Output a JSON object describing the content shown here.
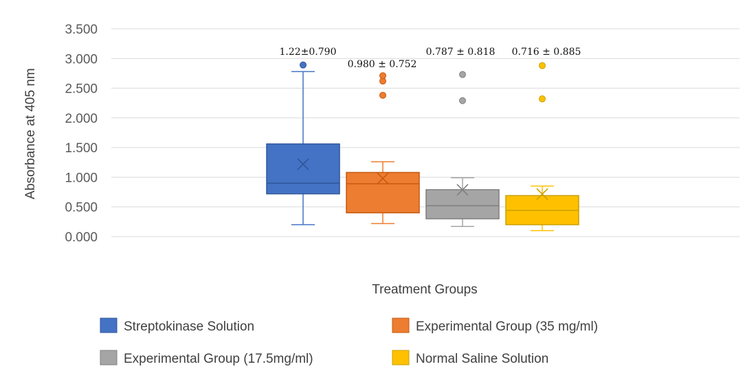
{
  "chart_data": {
    "type": "boxplot",
    "xlabel": "Treatment Groups",
    "ylabel": "Absorbance at 405 nm",
    "ylim": [
      0,
      3.5
    ],
    "yticks": [
      "0.000",
      "0.500",
      "1.000",
      "1.500",
      "2.000",
      "2.500",
      "3.000",
      "3.500"
    ],
    "grid": true,
    "legend_position": "bottom",
    "series": [
      {
        "name": "Streptokinase Solution",
        "color": "#4472C4",
        "edge": "#2F5597",
        "min": 0.2,
        "q1": 0.72,
        "median": 0.9,
        "q3": 1.56,
        "max": 2.78,
        "mean": 1.22,
        "outliers": [
          2.89
        ],
        "annotation": "1.22±0.790"
      },
      {
        "name": "Experimental Group (35 mg/ml)",
        "color": "#ED7D31",
        "edge": "#C55A11",
        "min": 0.22,
        "q1": 0.4,
        "median": 0.89,
        "q3": 1.08,
        "max": 1.26,
        "mean": 0.98,
        "outliers": [
          2.38,
          2.62,
          2.71
        ],
        "annotation": "0.980 ± 0.752"
      },
      {
        "name": "Experimental Group (17.5mg/ml)",
        "color": "#A5A5A5",
        "edge": "#7F7F7F",
        "min": 0.17,
        "q1": 0.3,
        "median": 0.52,
        "q3": 0.79,
        "max": 0.99,
        "mean": 0.787,
        "outliers": [
          2.29,
          2.73
        ],
        "annotation": "0.787 ± 0.818"
      },
      {
        "name": "Normal Saline Solution",
        "color": "#FFC000",
        "edge": "#C9A000",
        "min": 0.1,
        "q1": 0.2,
        "median": 0.44,
        "q3": 0.69,
        "max": 0.85,
        "mean": 0.716,
        "outliers": [
          2.32,
          2.88
        ],
        "annotation": "0.716 ± 0.885"
      }
    ]
  }
}
